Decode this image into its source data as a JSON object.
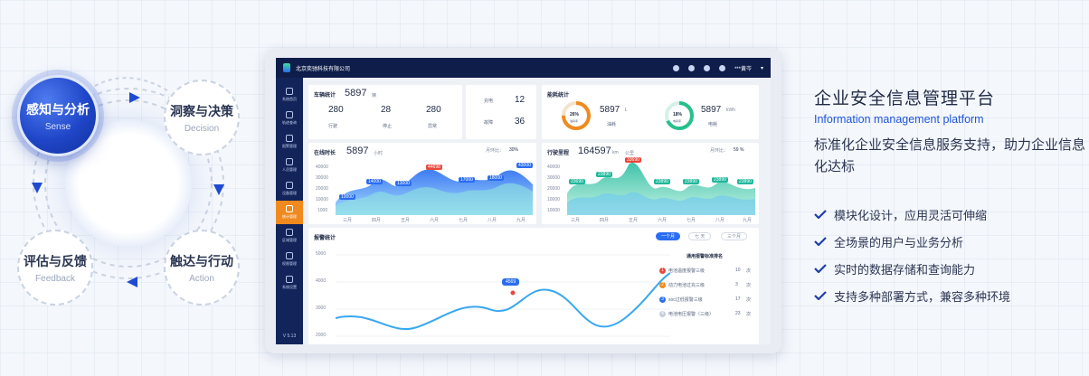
{
  "cycle": {
    "nodes": [
      {
        "zh": "感知与分析",
        "en": "Sense"
      },
      {
        "zh": "洞察与决策",
        "en": "Decision"
      },
      {
        "zh": "触达与行动",
        "en": "Action"
      },
      {
        "zh": "评估与反馈",
        "en": "Feedback"
      }
    ]
  },
  "dashboard": {
    "company": "北京奕驰科技有限公司",
    "user": "***黄岑",
    "version": "V 5.13",
    "sidebar": [
      "系统首页",
      "轨迹查询",
      "报警管理",
      "人员管理",
      "设备管理",
      "统计管理",
      "区域管理",
      "权限管理",
      "系统设置"
    ],
    "vehicle": {
      "title": "车辆统计",
      "total": "5897",
      "unit": "辆",
      "running": "280",
      "stopped": "28",
      "abnormal": "280",
      "running_label": "行驶",
      "stopped_label": "停止",
      "abnormal_label": "异常",
      "charging_label": "充电",
      "charging": "12",
      "fault_label": "故障",
      "fault": "36"
    },
    "energy": {
      "title": "能耗统计",
      "gauge1_pct": "26%",
      "gauge1_label": "油耗率",
      "gauge1_val": "5897",
      "gauge1_unit": "L",
      "gauge1_tag": "油耗",
      "gauge2_pct": "18%",
      "gauge2_label": "电耗率",
      "gauge2_val": "5897",
      "gauge2_unit": "kWh",
      "gauge2_tag": "电耗"
    },
    "online": {
      "title": "在线时长",
      "value": "5897",
      "unit": "小时",
      "ratio_label": "月环比：",
      "ratio": "30%",
      "months": [
        "三月",
        "四月",
        "五月",
        "六月",
        "七月",
        "八月",
        "九月"
      ],
      "yticks": [
        "40000",
        "30000",
        "20000",
        "10000",
        "1000"
      ],
      "labels": [
        "10000",
        "14000",
        "13000",
        "44698",
        "17000",
        "18000",
        "43000"
      ]
    },
    "mileage": {
      "title": "行驶里程",
      "value": "164597",
      "unit": "km",
      "tag": "公里",
      "ratio_label": "月环比：",
      "ratio": "59 %",
      "months": [
        "三月",
        "四月",
        "五月",
        "六月",
        "七月",
        "八月",
        "九月"
      ],
      "yticks": [
        "40000",
        "30000",
        "20000",
        "10000",
        "10000"
      ],
      "labels": [
        "23690",
        "23890",
        "33690",
        "23890",
        "23890",
        "23890",
        "23890"
      ]
    },
    "alarm": {
      "title": "报警统计",
      "tabs": [
        "一个月",
        "七 天",
        "三个月"
      ],
      "yticks": [
        "5000",
        "4000",
        "3000",
        "2000"
      ],
      "peak": "4569",
      "rank_title": "通用报警标准排名",
      "rank": [
        {
          "no": "1",
          "name": "电池温度报警三级",
          "count": "10",
          "unit": "次"
        },
        {
          "no": "2",
          "name": "动力电池过充三级",
          "count": "3",
          "unit": "次"
        },
        {
          "no": "3",
          "name": "soc过低报警三级",
          "count": "17",
          "unit": "次"
        },
        {
          "no": "4",
          "name": "电池电压报警（三级）",
          "count": "23",
          "unit": "次"
        }
      ]
    }
  },
  "copy": {
    "title": "企业安全信息管理平台",
    "subtitle": "Information management platform",
    "desc": "标准化企业安全信息服务支持，助力企业信息化达标",
    "features": [
      "模块化设计，应用灵活可伸缩",
      "全场景的用户与业务分析",
      "实时的数据存储和查询能力",
      "支持多种部署方式，兼容多种环境"
    ]
  },
  "colors": {
    "accent": "#1f56d8",
    "navy": "#13245a",
    "orange": "#f08a1f",
    "green": "#27c08a"
  }
}
